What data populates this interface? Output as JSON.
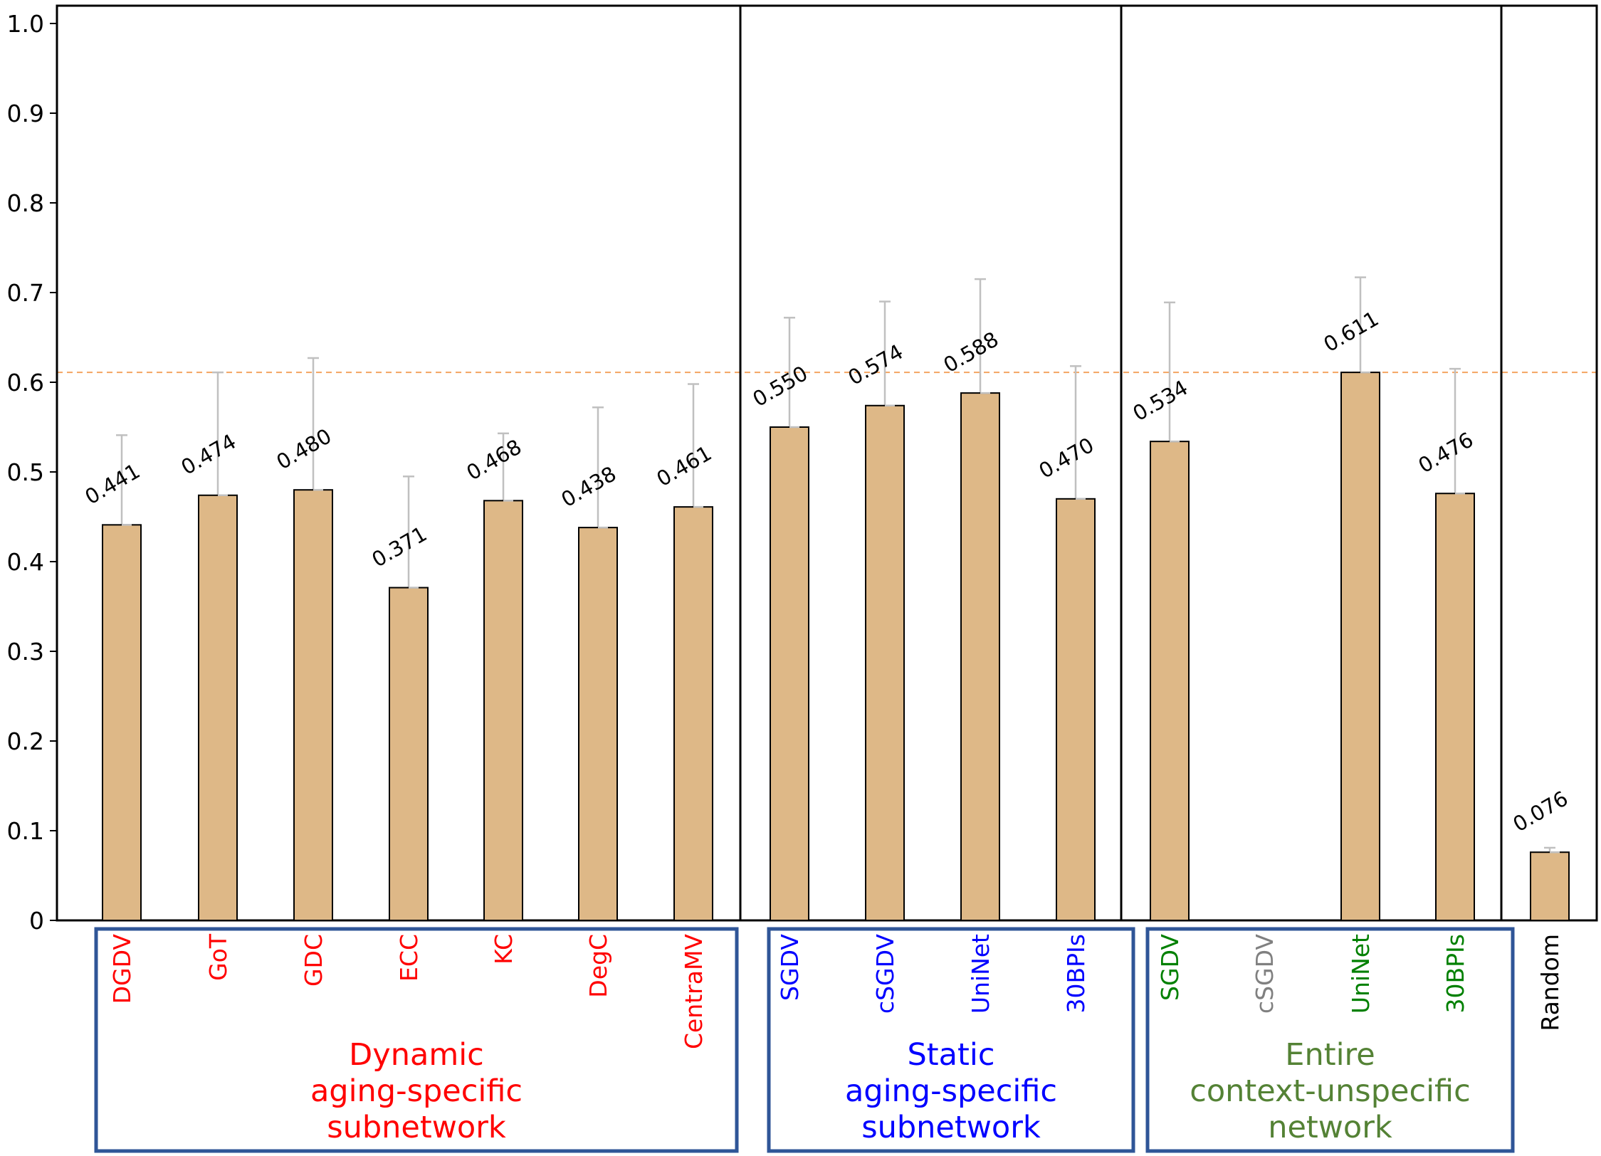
{
  "chart_data": {
    "type": "bar",
    "title": "",
    "xlabel": "",
    "ylabel": "",
    "ylim": [
      0,
      1.02
    ],
    "yticks": [
      {
        "value": 0,
        "label": "0"
      },
      {
        "value": 0.1,
        "label": "0.1"
      },
      {
        "value": 0.2,
        "label": "0.2"
      },
      {
        "value": 0.3,
        "label": "0.3"
      },
      {
        "value": 0.4,
        "label": "0.4"
      },
      {
        "value": 0.5,
        "label": "0.5"
      },
      {
        "value": 0.6,
        "label": "0.6"
      },
      {
        "value": 0.7,
        "label": "0.7"
      },
      {
        "value": 0.8,
        "label": "0.8"
      },
      {
        "value": 0.9,
        "label": "0.9"
      },
      {
        "value": 1.0,
        "label": "1.0"
      }
    ],
    "reference_line": 0.611,
    "bar_color": "#deb887",
    "error_color": "#c0c0c0",
    "reference_line_color": "#f4a460",
    "bars": [
      {
        "category": "DGDV",
        "value": 0.441,
        "label": "0.441",
        "err_hi": 0.541,
        "group": 0,
        "color": "#ff0000"
      },
      {
        "category": "GoT",
        "value": 0.474,
        "label": "0.474",
        "err_hi": 0.611,
        "group": 0,
        "color": "#ff0000"
      },
      {
        "category": "GDC",
        "value": 0.48,
        "label": "0.480",
        "err_hi": 0.627,
        "group": 0,
        "color": "#ff0000"
      },
      {
        "category": "ECC",
        "value": 0.371,
        "label": "0.371",
        "err_hi": 0.495,
        "group": 0,
        "color": "#ff0000"
      },
      {
        "category": "KC",
        "value": 0.468,
        "label": "0.468",
        "err_hi": 0.543,
        "group": 0,
        "color": "#ff0000"
      },
      {
        "category": "DegC",
        "value": 0.438,
        "label": "0.438",
        "err_hi": 0.572,
        "group": 0,
        "color": "#ff0000"
      },
      {
        "category": "CentraMV",
        "value": 0.461,
        "label": "0.461",
        "err_hi": 0.598,
        "group": 0,
        "color": "#ff0000"
      },
      {
        "category": "SGDV",
        "value": 0.55,
        "label": "0.550",
        "err_hi": 0.672,
        "group": 1,
        "color": "#0000ff"
      },
      {
        "category": "cSGDV",
        "value": 0.574,
        "label": "0.574",
        "err_hi": 0.69,
        "group": 1,
        "color": "#0000ff"
      },
      {
        "category": "UniNet",
        "value": 0.588,
        "label": "0.588",
        "err_hi": 0.715,
        "group": 1,
        "color": "#0000ff"
      },
      {
        "category": "30BPIs",
        "value": 0.47,
        "label": "0.470",
        "err_hi": 0.618,
        "group": 1,
        "color": "#0000ff"
      },
      {
        "category": "SGDV",
        "value": 0.534,
        "label": "0.534",
        "err_hi": 0.689,
        "group": 2,
        "color": "#008000"
      },
      {
        "category": "cSGDV",
        "value": null,
        "label": "",
        "err_hi": null,
        "group": 2,
        "color": "#808080"
      },
      {
        "category": "UniNet",
        "value": 0.611,
        "label": "0.611",
        "err_hi": 0.717,
        "group": 2,
        "color": "#008000"
      },
      {
        "category": "30BPIs",
        "value": 0.476,
        "label": "0.476",
        "err_hi": 0.615,
        "group": 2,
        "color": "#008000"
      },
      {
        "category": "Random",
        "value": 0.076,
        "label": "0.076",
        "err_hi": 0.081,
        "group": 3,
        "color": "#000000"
      }
    ],
    "groups": [
      {
        "lines": [
          "Dynamic",
          "aging-specific",
          "subnetwork"
        ],
        "color": "#ff0000"
      },
      {
        "lines": [
          "Static",
          "aging-specific",
          "subnetwork"
        ],
        "color": "#0000ff"
      },
      {
        "lines": [
          "Entire",
          "context-unspecific",
          "network"
        ],
        "color": "#548235"
      }
    ],
    "group_box_color": "#2f5597"
  }
}
